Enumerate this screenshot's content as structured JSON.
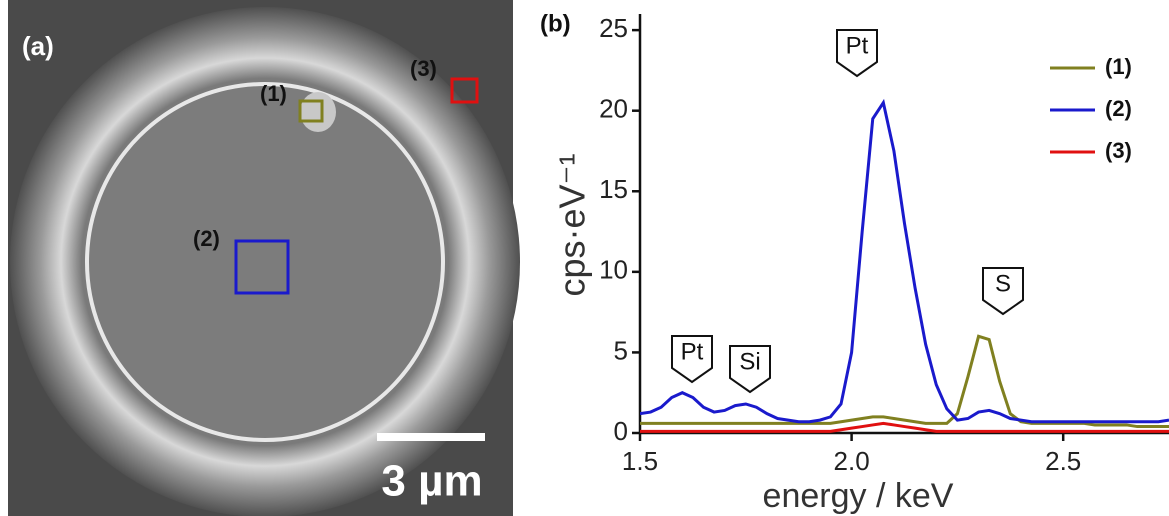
{
  "panel_a": {
    "label": "(a)",
    "regions": [
      "(1)",
      "(2)",
      "(3)"
    ],
    "scale_bar": "3 µm"
  },
  "chart_data": {
    "type": "line",
    "panel_label": "(b)",
    "x_label": "energy / keV",
    "y_label": "cps·eV⁻¹",
    "annotations": [
      "Pt",
      "Si",
      "Pt",
      "S"
    ],
    "xlim": [
      1.5,
      2.75
    ],
    "ylim": [
      0,
      26
    ],
    "xticks": [
      1.5,
      {
        "value": 2.0,
        "label": "2.0"
      },
      2.5
    ],
    "yticks": [
      0,
      5,
      10,
      15,
      20,
      25
    ],
    "x": [
      1.5,
      1.525,
      1.55,
      1.575,
      1.6,
      1.625,
      1.65,
      1.675,
      1.7,
      1.725,
      1.75,
      1.775,
      1.8,
      1.825,
      1.85,
      1.875,
      1.9,
      1.925,
      1.95,
      1.975,
      2.0,
      2.025,
      2.05,
      2.075,
      2.1,
      2.125,
      2.15,
      2.175,
      2.2,
      2.225,
      2.25,
      2.275,
      2.3,
      2.325,
      2.35,
      2.375,
      2.4,
      2.425,
      2.45,
      2.475,
      2.5,
      2.525,
      2.55,
      2.575,
      2.6,
      2.625,
      2.65,
      2.675,
      2.7,
      2.725,
      2.75
    ],
    "series": [
      {
        "name": "(1)",
        "color": "#808020",
        "values": [
          0.6,
          0.6,
          0.6,
          0.6,
          0.6,
          0.6,
          0.6,
          0.6,
          0.6,
          0.6,
          0.6,
          0.6,
          0.6,
          0.6,
          0.6,
          0.6,
          0.6,
          0.6,
          0.6,
          0.7,
          0.8,
          0.9,
          1.0,
          1.0,
          0.9,
          0.8,
          0.7,
          0.6,
          0.6,
          0.6,
          1.2,
          3.5,
          6.0,
          5.8,
          3.2,
          1.2,
          0.7,
          0.6,
          0.6,
          0.6,
          0.6,
          0.6,
          0.6,
          0.5,
          0.5,
          0.5,
          0.5,
          0.4,
          0.4,
          0.4,
          0.4
        ]
      },
      {
        "name": "(2)",
        "color": "#1a1acc",
        "values": [
          1.2,
          1.3,
          1.6,
          2.2,
          2.5,
          2.2,
          1.6,
          1.3,
          1.4,
          1.7,
          1.8,
          1.6,
          1.2,
          0.9,
          0.8,
          0.7,
          0.7,
          0.8,
          1.0,
          1.8,
          5.0,
          12.5,
          19.5,
          20.5,
          17.5,
          13.0,
          9.0,
          5.5,
          3.0,
          1.5,
          0.8,
          0.9,
          1.3,
          1.4,
          1.2,
          0.9,
          0.8,
          0.7,
          0.7,
          0.7,
          0.7,
          0.7,
          0.7,
          0.7,
          0.7,
          0.7,
          0.7,
          0.7,
          0.7,
          0.7,
          0.8
        ]
      },
      {
        "name": "(3)",
        "color": "#e01010",
        "values": [
          0.1,
          0.1,
          0.1,
          0.1,
          0.1,
          0.1,
          0.1,
          0.1,
          0.1,
          0.1,
          0.1,
          0.1,
          0.1,
          0.1,
          0.1,
          0.1,
          0.1,
          0.1,
          0.1,
          0.2,
          0.3,
          0.4,
          0.5,
          0.6,
          0.5,
          0.4,
          0.3,
          0.2,
          0.1,
          0.1,
          0.1,
          0.1,
          0.1,
          0.1,
          0.1,
          0.1,
          0.1,
          0.1,
          0.1,
          0.1,
          0.1,
          0.1,
          0.1,
          0.1,
          0.1,
          0.1,
          0.1,
          0.1,
          0.1,
          0.1,
          0.1
        ]
      }
    ]
  }
}
